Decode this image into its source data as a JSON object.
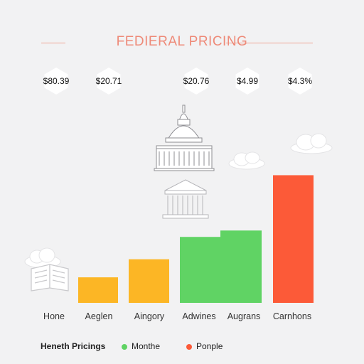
{
  "title": "FEDIERAL PRICING",
  "chart_data": {
    "type": "bar",
    "title": "FEDIERAL PRICING",
    "categories": [
      "Hone",
      "Aeglen",
      "Aingory",
      "Adwines",
      "Augrans",
      "Carnhons"
    ],
    "series": [
      {
        "name": "Monthe",
        "color": "#60d364",
        "values": [
          null,
          null,
          null,
          62,
          68,
          null
        ]
      },
      {
        "name": "Ponple",
        "color": "#fc5a38",
        "values": [
          null,
          null,
          null,
          null,
          null,
          120
        ]
      },
      {
        "name": "",
        "color": "#fcb625",
        "values": [
          null,
          24,
          41,
          null,
          null,
          null
        ]
      }
    ],
    "ylim": [
      0,
      135
    ],
    "xlabel": "",
    "ylabel": "",
    "price_labels": [
      "$80.39",
      "$20.71",
      "",
      "$20.76",
      "$4.99",
      "$4.3%"
    ],
    "legend": {
      "title": "Heneth Pricings",
      "position": "bottom-left"
    },
    "grid": false
  },
  "icons": {
    "capitol": "capitol-building-icon",
    "courthouse": "courthouse-icon",
    "book": "open-book-icon",
    "clouds": "cloud-icon"
  },
  "colors": {
    "background": "#f2f2f3",
    "title": "#ee8a78",
    "text": "#222222"
  }
}
